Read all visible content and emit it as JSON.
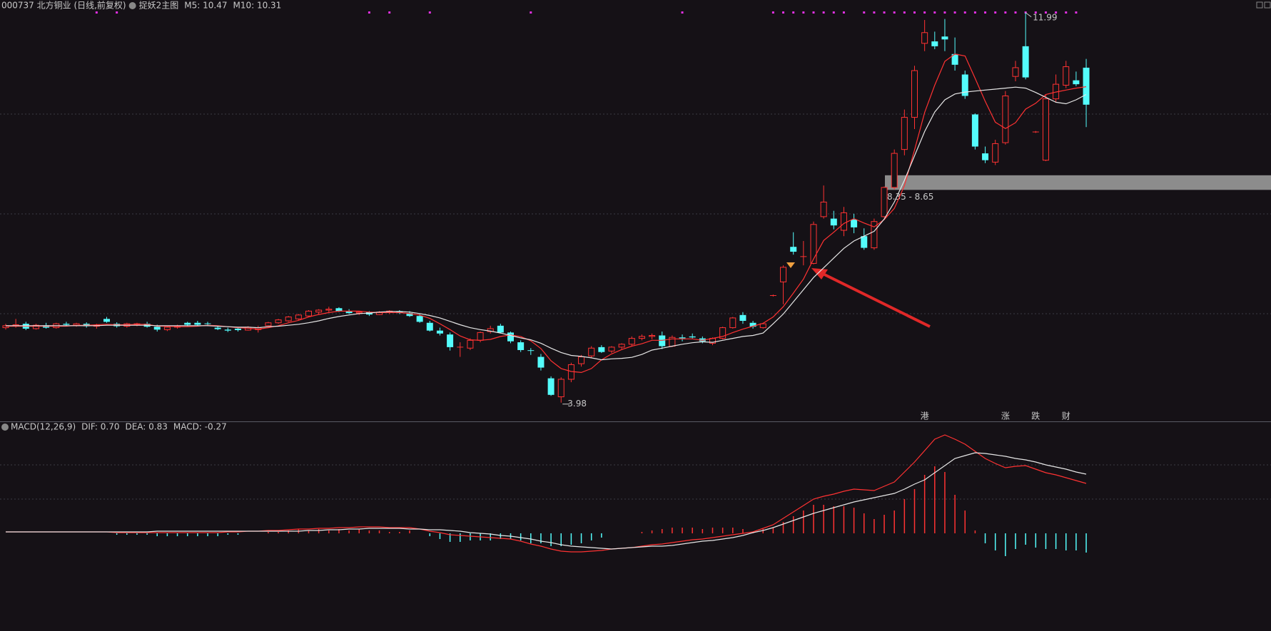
{
  "chart_data": [
    {
      "type": "candlestick",
      "title": "000737 北方铜业 (日线,前复权)",
      "subtitle": "捉妖2主图",
      "up_color": "#ff3232",
      "down_color": "#54fcfc",
      "ylim": [
        3.61,
        12.25
      ],
      "open": [
        5.52,
        5.56,
        5.6,
        5.5,
        5.57,
        5.52,
        5.6,
        5.57,
        5.6,
        5.55,
        5.7,
        5.6,
        5.55,
        5.58,
        5.6,
        5.54,
        5.48,
        5.53,
        5.62,
        5.62,
        5.6,
        5.52,
        5.48,
        5.5,
        5.47,
        5.48,
        5.56,
        5.62,
        5.66,
        5.7,
        5.76,
        5.84,
        5.88,
        5.92,
        5.86,
        5.82,
        5.84,
        5.79,
        5.83,
        5.86,
        5.82,
        5.76,
        5.62,
        5.46,
        5.38,
        5.12,
        5.1,
        5.26,
        5.44,
        5.56,
        5.42,
        5.22,
        5.05,
        4.92,
        4.48,
        4.1,
        4.46,
        4.78,
        4.94,
        5.12,
        5.04,
        5.12,
        5.18,
        5.3,
        5.34,
        5.36,
        5.14,
        5.32,
        5.34,
        5.3,
        5.2,
        5.3,
        5.52,
        5.78,
        5.62,
        5.52,
        6.18,
        6.46,
        7.18,
        6.98,
        6.84,
        7.8,
        7.76,
        7.52,
        7.74,
        7.4,
        7.16,
        7.8,
        8.4,
        9.18,
        9.84,
        11.36,
        11.4,
        11.5,
        11.14,
        10.72,
        9.9,
        9.1,
        8.92,
        9.32,
        10.68,
        11.3,
        9.54,
        8.96,
        10.22,
        10.5,
        10.6,
        10.86
      ],
      "high": [
        5.6,
        5.7,
        5.64,
        5.6,
        5.62,
        5.62,
        5.64,
        5.62,
        5.63,
        5.6,
        5.74,
        5.63,
        5.62,
        5.62,
        5.64,
        5.58,
        5.56,
        5.58,
        5.64,
        5.66,
        5.64,
        5.56,
        5.52,
        5.52,
        5.55,
        5.56,
        5.64,
        5.7,
        5.76,
        5.8,
        5.88,
        5.9,
        5.95,
        5.94,
        5.9,
        5.86,
        5.86,
        5.86,
        5.88,
        5.88,
        5.86,
        5.8,
        5.66,
        5.52,
        5.42,
        5.22,
        5.3,
        5.44,
        5.56,
        5.6,
        5.44,
        5.26,
        5.1,
        4.98,
        4.52,
        4.5,
        4.8,
        4.96,
        5.14,
        5.16,
        5.14,
        5.2,
        5.34,
        5.38,
        5.4,
        5.44,
        5.36,
        5.38,
        5.4,
        5.34,
        5.32,
        5.54,
        5.74,
        5.84,
        5.66,
        5.62,
        6.2,
        6.8,
        7.48,
        7.3,
        7.7,
        8.44,
        7.92,
        8.0,
        7.86,
        7.56,
        7.76,
        8.42,
        9.18,
        10.0,
        10.9,
        11.84,
        11.6,
        11.86,
        11.48,
        10.8,
        9.92,
        9.24,
        9.38,
        10.38,
        11.0,
        11.99,
        9.56,
        10.3,
        10.72,
        11.0,
        10.78,
        11.04
      ],
      "low": [
        5.48,
        5.52,
        5.47,
        5.48,
        5.5,
        5.5,
        5.55,
        5.54,
        5.52,
        5.5,
        5.62,
        5.52,
        5.52,
        5.55,
        5.52,
        5.44,
        5.45,
        5.5,
        5.55,
        5.56,
        5.55,
        5.47,
        5.43,
        5.44,
        5.46,
        5.42,
        5.54,
        5.6,
        5.64,
        5.68,
        5.74,
        5.8,
        5.84,
        5.84,
        5.8,
        5.78,
        5.76,
        5.78,
        5.8,
        5.8,
        5.74,
        5.62,
        5.44,
        5.36,
        5.05,
        4.92,
        5.06,
        5.22,
        5.4,
        5.4,
        5.2,
        5.02,
        4.96,
        4.64,
        4.12,
        3.98,
        4.4,
        4.72,
        4.9,
        5.0,
        5.0,
        5.08,
        5.14,
        5.26,
        5.28,
        5.08,
        5.12,
        5.24,
        5.3,
        5.2,
        5.16,
        5.28,
        5.5,
        5.6,
        5.5,
        5.5,
        6.16,
        6.0,
        7.02,
        6.8,
        6.82,
        7.76,
        7.54,
        7.4,
        7.46,
        7.12,
        7.12,
        7.78,
        8.36,
        9.06,
        9.6,
        11.2,
        11.24,
        11.2,
        10.8,
        10.22,
        9.18,
        8.9,
        8.86,
        9.28,
        10.58,
        10.62,
        9.52,
        8.94,
        10.16,
        10.44,
        10.48,
        9.64
      ],
      "close": [
        5.56,
        5.58,
        5.5,
        5.57,
        5.52,
        5.6,
        5.58,
        5.6,
        5.55,
        5.57,
        5.64,
        5.55,
        5.6,
        5.6,
        5.54,
        5.48,
        5.53,
        5.55,
        5.58,
        5.58,
        5.59,
        5.49,
        5.46,
        5.47,
        5.53,
        5.52,
        5.62,
        5.68,
        5.74,
        5.78,
        5.86,
        5.88,
        5.9,
        5.86,
        5.82,
        5.84,
        5.79,
        5.84,
        5.86,
        5.82,
        5.76,
        5.64,
        5.46,
        5.4,
        5.12,
        5.12,
        5.26,
        5.42,
        5.5,
        5.42,
        5.24,
        5.06,
        5.04,
        4.7,
        4.14,
        4.46,
        4.76,
        4.92,
        5.1,
        5.02,
        5.12,
        5.18,
        5.3,
        5.34,
        5.36,
        5.14,
        5.32,
        5.3,
        5.32,
        5.24,
        5.3,
        5.52,
        5.72,
        5.66,
        5.54,
        5.6,
        6.18,
        6.76,
        7.08,
        6.98,
        7.64,
        8.1,
        7.62,
        7.88,
        7.58,
        7.16,
        7.7,
        8.4,
        9.1,
        9.84,
        10.8,
        11.58,
        11.3,
        11.44,
        10.92,
        10.28,
        9.24,
        8.96,
        9.3,
        10.28,
        10.86,
        10.66,
        9.54,
        10.22,
        10.52,
        10.88,
        10.52,
        10.1
      ],
      "ma_lines": [
        {
          "label": "M5: 10.47",
          "color": "#ff3232",
          "values": [
            5.55,
            5.55,
            5.55,
            5.55,
            5.55,
            5.55,
            5.55,
            5.57,
            5.57,
            5.58,
            5.59,
            5.58,
            5.58,
            5.59,
            5.59,
            5.55,
            5.55,
            5.54,
            5.54,
            5.55,
            5.57,
            5.56,
            5.54,
            5.52,
            5.51,
            5.49,
            5.52,
            5.56,
            5.62,
            5.67,
            5.74,
            5.79,
            5.83,
            5.86,
            5.86,
            5.86,
            5.84,
            5.83,
            5.83,
            5.83,
            5.81,
            5.78,
            5.71,
            5.6,
            5.48,
            5.35,
            5.27,
            5.26,
            5.28,
            5.34,
            5.37,
            5.34,
            5.25,
            5.09,
            4.84,
            4.68,
            4.62,
            4.6,
            4.68,
            4.86,
            4.98,
            5.07,
            5.14,
            5.19,
            5.26,
            5.26,
            5.29,
            5.29,
            5.29,
            5.26,
            5.3,
            5.34,
            5.42,
            5.49,
            5.55,
            5.61,
            5.74,
            5.95,
            6.23,
            6.52,
            6.93,
            7.31,
            7.48,
            7.66,
            7.76,
            7.67,
            7.59,
            7.74,
            7.97,
            8.44,
            9.17,
            9.94,
            10.5,
            10.99,
            11.14,
            11.1,
            10.64,
            10.17,
            9.74,
            9.61,
            9.73,
            10.01,
            10.13,
            10.31,
            10.36,
            10.4,
            10.44,
            10.47
          ]
        },
        {
          "label": "M10: 10.31",
          "color": "#e6e6e6",
          "values": [
            5.56,
            5.56,
            5.56,
            5.56,
            5.56,
            5.56,
            5.56,
            5.56,
            5.56,
            5.56,
            5.57,
            5.57,
            5.57,
            5.57,
            5.57,
            5.56,
            5.56,
            5.56,
            5.56,
            5.56,
            5.56,
            5.55,
            5.54,
            5.53,
            5.53,
            5.52,
            5.54,
            5.55,
            5.57,
            5.59,
            5.62,
            5.66,
            5.71,
            5.75,
            5.78,
            5.81,
            5.82,
            5.84,
            5.85,
            5.85,
            5.84,
            5.81,
            5.77,
            5.72,
            5.65,
            5.58,
            5.52,
            5.48,
            5.45,
            5.41,
            5.36,
            5.31,
            5.27,
            5.2,
            5.1,
            5.01,
            4.95,
            4.93,
            4.9,
            4.86,
            4.88,
            4.89,
            4.91,
            4.97,
            5.06,
            5.1,
            5.14,
            5.18,
            5.21,
            5.23,
            5.22,
            5.26,
            5.3,
            5.34,
            5.36,
            5.41,
            5.6,
            5.8,
            6.05,
            6.3,
            6.55,
            6.75,
            6.95,
            7.15,
            7.3,
            7.4,
            7.5,
            7.75,
            8.1,
            8.55,
            9.05,
            9.55,
            9.95,
            10.2,
            10.32,
            10.36,
            10.38,
            10.4,
            10.42,
            10.44,
            10.46,
            10.44,
            10.35,
            10.25,
            10.15,
            10.12,
            10.2,
            10.31
          ]
        }
      ],
      "high_label": 11.99,
      "low_label": 3.98,
      "zone": {
        "low": 8.35,
        "high": 8.65,
        "label": "8.35 - 8.65",
        "color": "#8c8c8c"
      },
      "event_tags": [
        {
          "label": "港",
          "color": "#ff3c3c"
        },
        {
          "label": "涨",
          "color": "#ff3c3c"
        },
        {
          "label": "跌",
          "color": "#3cd23c"
        },
        {
          "label": "财",
          "color": "#78b4ff"
        }
      ]
    },
    {
      "type": "macd",
      "title": "MACD(12,26,9)",
      "ylim": [
        -1.32,
        1.53
      ],
      "series": [
        {
          "label": "DIF: 0.70",
          "color": "#ff3232",
          "values": [
            0.02,
            0.02,
            0.02,
            0.02,
            0.02,
            0.02,
            0.02,
            0.02,
            0.02,
            0.02,
            0.02,
            0.01,
            0.01,
            0.01,
            0.01,
            0.01,
            0.01,
            0.01,
            0.01,
            0.01,
            0.01,
            0.01,
            0.02,
            0.02,
            0.03,
            0.03,
            0.04,
            0.04,
            0.05,
            0.06,
            0.06,
            0.07,
            0.07,
            0.08,
            0.08,
            0.09,
            0.09,
            0.09,
            0.08,
            0.08,
            0.08,
            0.06,
            0.03,
            0.01,
            -0.02,
            -0.03,
            -0.04,
            -0.05,
            -0.06,
            -0.07,
            -0.08,
            -0.11,
            -0.15,
            -0.18,
            -0.22,
            -0.25,
            -0.26,
            -0.26,
            -0.25,
            -0.24,
            -0.22,
            -0.21,
            -0.2,
            -0.18,
            -0.16,
            -0.15,
            -0.13,
            -0.11,
            -0.09,
            -0.08,
            -0.06,
            -0.04,
            -0.02,
            0.0,
            0.02,
            0.07,
            0.12,
            0.21,
            0.3,
            0.39,
            0.48,
            0.52,
            0.55,
            0.59,
            0.62,
            0.61,
            0.6,
            0.66,
            0.72,
            0.86,
            1.0,
            1.16,
            1.32,
            1.38,
            1.32,
            1.25,
            1.15,
            1.05,
            0.98,
            0.92,
            0.94,
            0.95,
            0.9,
            0.85,
            0.82,
            0.78,
            0.74,
            0.7
          ]
        },
        {
          "label": "DEA: 0.83",
          "color": "#e6e6e6",
          "values": [
            0.02,
            0.02,
            0.02,
            0.02,
            0.02,
            0.02,
            0.02,
            0.02,
            0.02,
            0.02,
            0.02,
            0.02,
            0.02,
            0.02,
            0.02,
            0.03,
            0.03,
            0.03,
            0.03,
            0.03,
            0.03,
            0.03,
            0.03,
            0.03,
            0.03,
            0.03,
            0.03,
            0.03,
            0.03,
            0.03,
            0.04,
            0.04,
            0.05,
            0.05,
            0.06,
            0.06,
            0.07,
            0.07,
            0.07,
            0.07,
            0.06,
            0.06,
            0.05,
            0.05,
            0.04,
            0.03,
            0.01,
            0.0,
            -0.01,
            -0.03,
            -0.04,
            -0.06,
            -0.08,
            -0.11,
            -0.13,
            -0.16,
            -0.18,
            -0.19,
            -0.2,
            -0.21,
            -0.22,
            -0.21,
            -0.2,
            -0.19,
            -0.18,
            -0.18,
            -0.17,
            -0.15,
            -0.13,
            -0.11,
            -0.1,
            -0.08,
            -0.06,
            -0.03,
            0.01,
            0.04,
            0.08,
            0.13,
            0.18,
            0.23,
            0.28,
            0.32,
            0.36,
            0.4,
            0.44,
            0.47,
            0.5,
            0.53,
            0.56,
            0.62,
            0.69,
            0.75,
            0.85,
            0.95,
            1.05,
            1.09,
            1.13,
            1.12,
            1.1,
            1.08,
            1.05,
            1.03,
            1.0,
            0.96,
            0.93,
            0.9,
            0.86,
            0.83
          ]
        }
      ],
      "histogram": {
        "label": "MACD: -0.27",
        "color": "#c832e6",
        "up_color": "#ff3232",
        "down_color": "#54fcfc",
        "values": [
          0,
          0,
          0,
          0,
          0,
          0,
          0,
          0,
          0,
          0,
          0,
          -0.02,
          -0.02,
          -0.02,
          -0.02,
          -0.04,
          -0.04,
          -0.04,
          -0.04,
          -0.04,
          -0.04,
          -0.04,
          -0.02,
          -0.02,
          0,
          0,
          0.02,
          0.02,
          0.04,
          0.06,
          0.04,
          0.06,
          0.04,
          0.06,
          0.04,
          0.06,
          0.04,
          0.04,
          0.02,
          0.02,
          0.04,
          0,
          -0.04,
          -0.08,
          -0.12,
          -0.12,
          -0.1,
          -0.1,
          -0.1,
          -0.08,
          -0.08,
          -0.1,
          -0.14,
          -0.14,
          -0.18,
          -0.18,
          -0.16,
          -0.14,
          -0.1,
          -0.06,
          0,
          0,
          0,
          0.02,
          0.04,
          0.06,
          0.08,
          0.08,
          0.08,
          0.06,
          0.08,
          0.08,
          0.08,
          0.06,
          0.02,
          0.06,
          0.08,
          0.16,
          0.24,
          0.32,
          0.4,
          0.4,
          0.38,
          0.38,
          0.36,
          0.28,
          0.2,
          0.26,
          0.32,
          0.48,
          0.62,
          0.82,
          0.94,
          0.86,
          0.54,
          0.32,
          0.04,
          -0.14,
          -0.24,
          -0.32,
          -0.22,
          -0.16,
          -0.2,
          -0.22,
          -0.22,
          -0.24,
          -0.24,
          -0.27
        ]
      }
    }
  ]
}
